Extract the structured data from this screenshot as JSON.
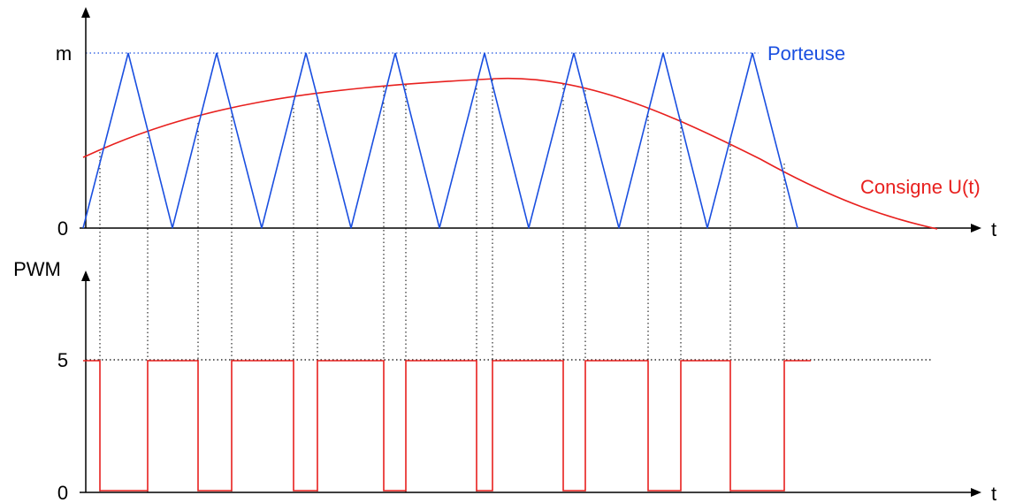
{
  "top": {
    "y_top_label": "m",
    "y_zero_label": "0",
    "t_label": "t",
    "carrier_label": "Porteuse",
    "setpoint_label": "Consigne U(t)"
  },
  "bottom": {
    "y_axis_label": "PWM",
    "y_high_label": "5",
    "y_zero_label": "0",
    "t_label": "t"
  },
  "colors": {
    "carrier": "#1a4fe0",
    "setpoint": "#e8201e",
    "pwm": "#e8201e",
    "axis": "#000000",
    "guide": "#000000"
  }
}
